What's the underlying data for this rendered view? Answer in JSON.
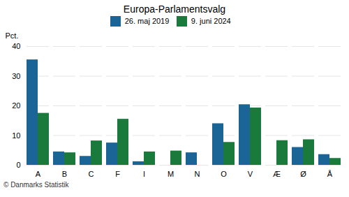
{
  "chart_data": {
    "type": "bar",
    "title": "Europa-Parlamentsvalg",
    "categories": [
      "A",
      "B",
      "C",
      "F",
      "I",
      "M",
      "N",
      "O",
      "V",
      "Æ",
      "Ø",
      "Å"
    ],
    "series": [
      {
        "name": "26. maj 2019",
        "color": "#1a6496",
        "values": [
          35.5,
          4.5,
          3.0,
          7.5,
          1.2,
          0.0,
          4.2,
          14.0,
          20.4,
          0.0,
          6.0,
          3.6
        ]
      },
      {
        "name": "9. juni 2024",
        "color": "#1a7a3c",
        "values": [
          17.5,
          4.2,
          8.2,
          15.5,
          4.5,
          4.8,
          0.0,
          7.7,
          19.3,
          8.3,
          8.6,
          2.3
        ]
      }
    ],
    "ylabel": "Pct.",
    "ylim": [
      0,
      40
    ],
    "yticks": [
      0,
      10,
      20,
      30,
      40
    ],
    "grid": true,
    "legend": "top",
    "caption": "© Danmarks Statistik"
  }
}
